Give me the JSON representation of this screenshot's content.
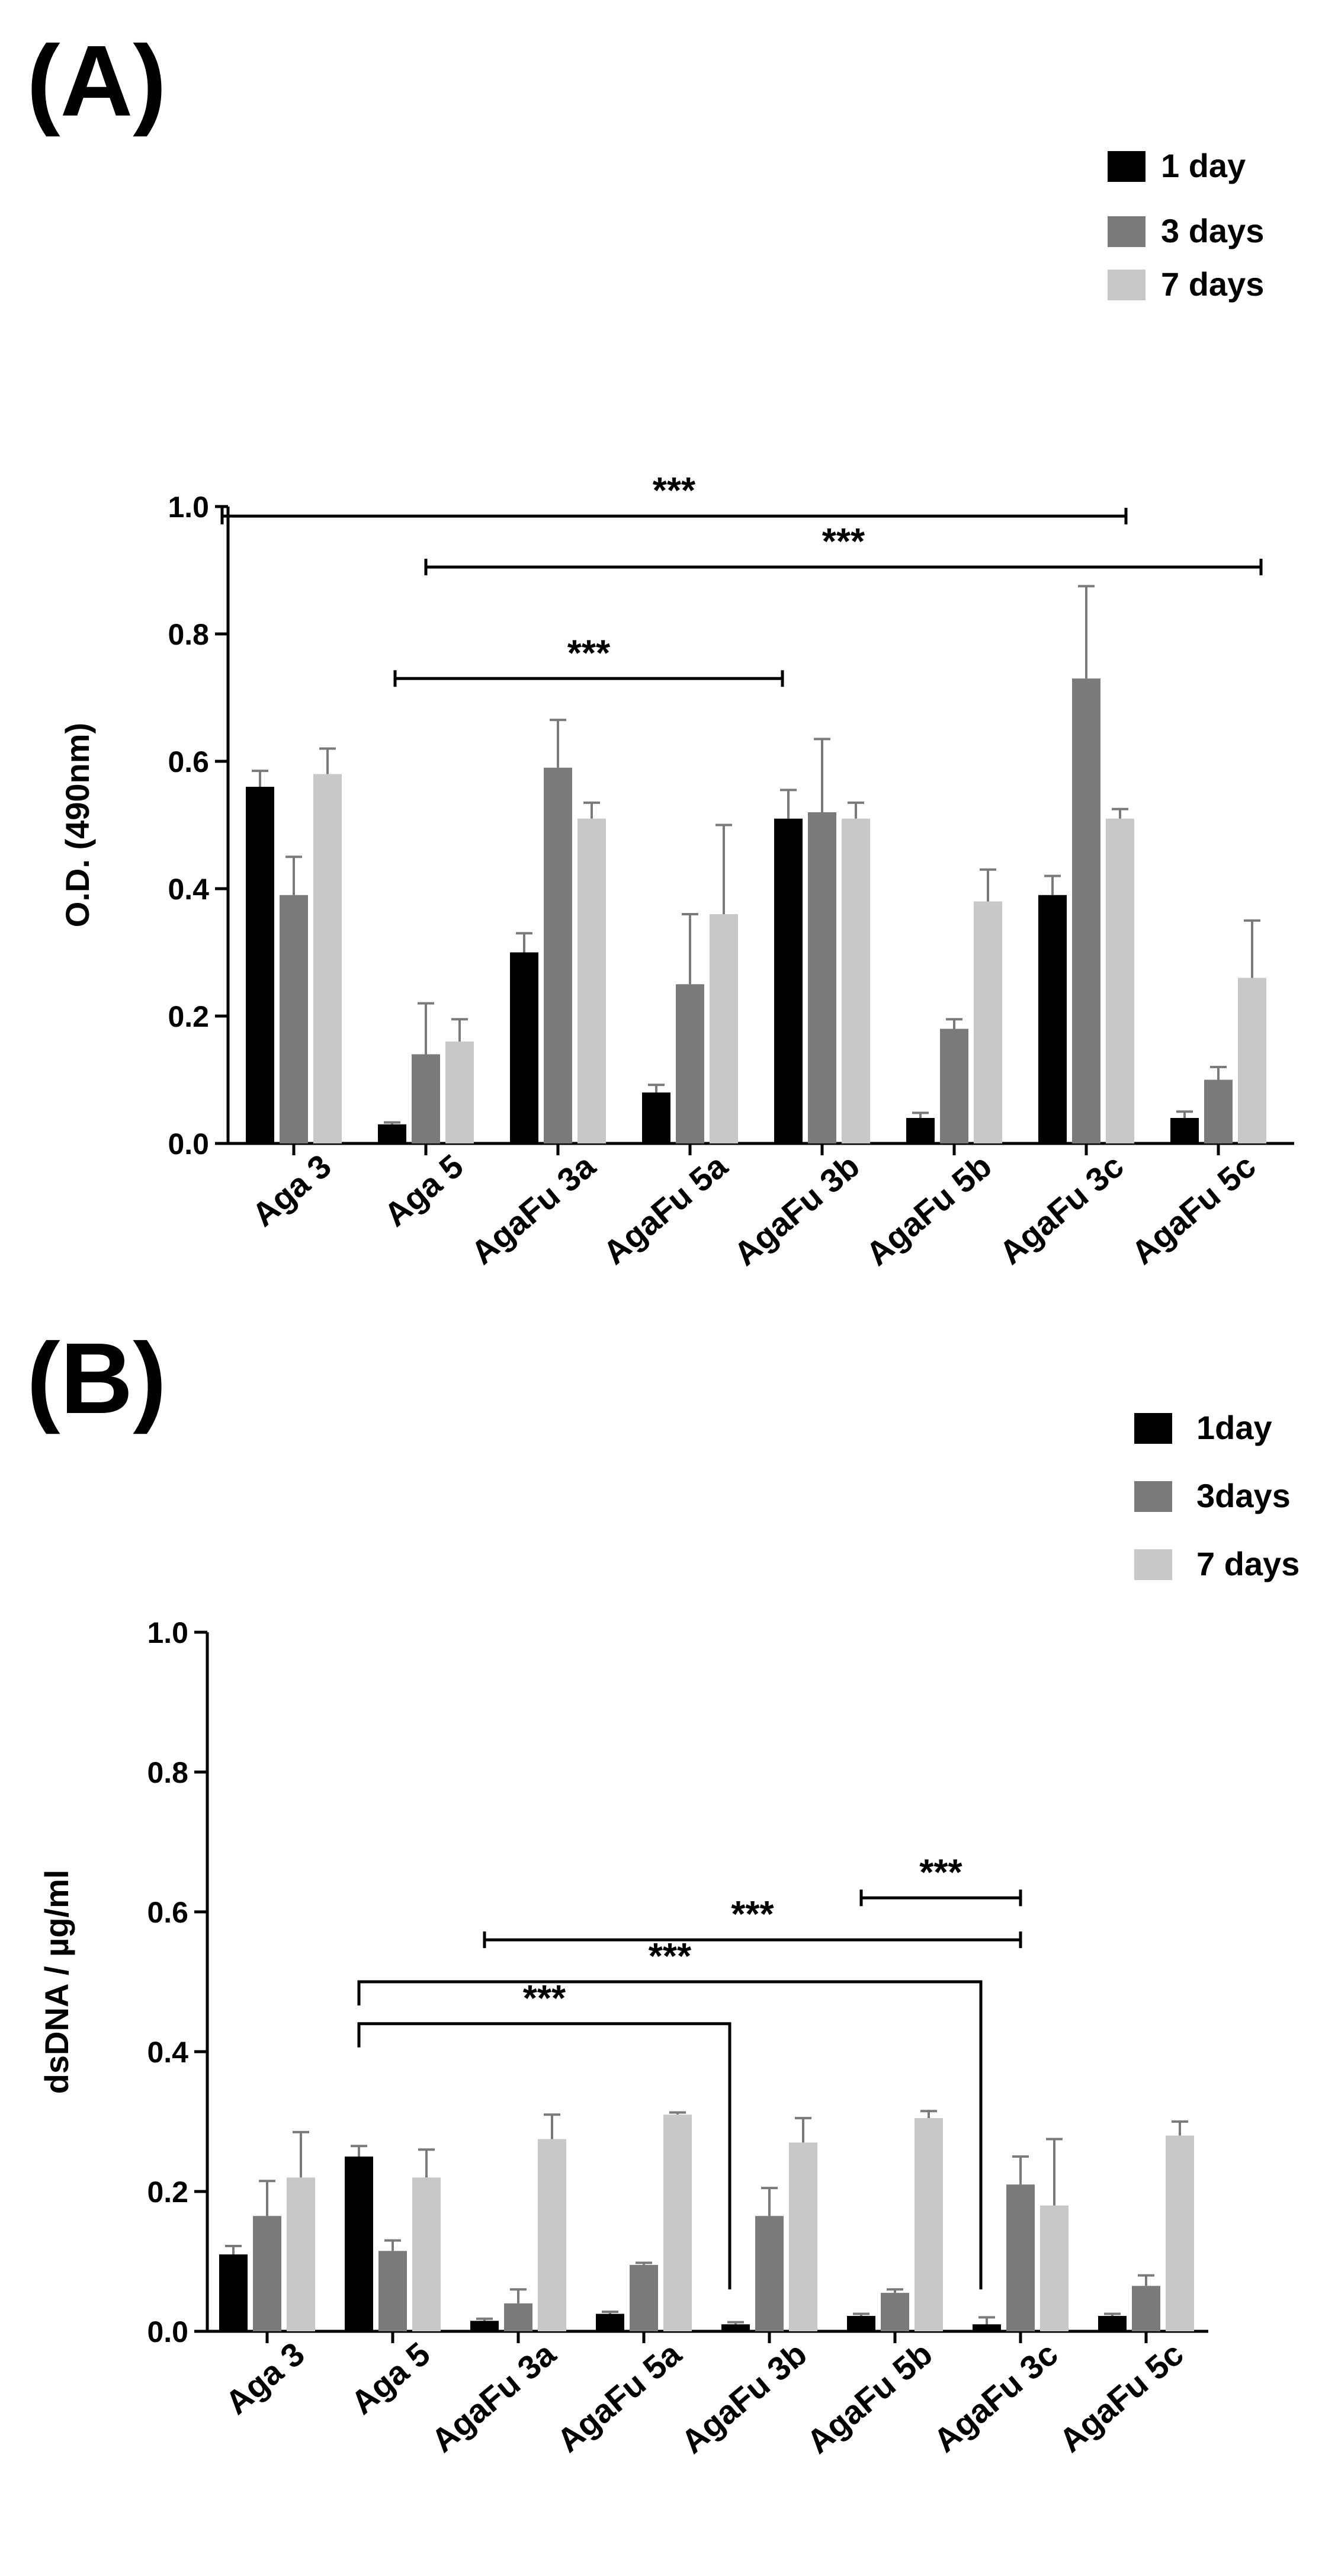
{
  "panels": {
    "a": "(A)",
    "b": "(B)"
  },
  "colors": {
    "day1": "#000000",
    "day3": "#7a7a7a",
    "day7": "#c8c8c8",
    "error": "#7a7a7a"
  },
  "chart_data": [
    {
      "type": "bar",
      "panel": "(A)",
      "title": "",
      "xlabel": "",
      "ylabel": "O.D. (490nm)",
      "ylim": [
        0,
        1.0
      ],
      "yticks": [
        "0.0",
        "0.2",
        "0.4",
        "0.6",
        "0.8",
        "1.0"
      ],
      "grid": false,
      "legend_position": "top-right",
      "categories": [
        "Aga 3",
        "Aga 5",
        "AgaFu 3a",
        "AgaFu 5a",
        "AgaFu 3b",
        "AgaFu 5b",
        "AgaFu 3c",
        "AgaFu 5c"
      ],
      "series": [
        {
          "name": "1 day",
          "values": [
            0.56,
            0.03,
            0.3,
            0.08,
            0.51,
            0.04,
            0.39,
            0.04
          ],
          "errors": [
            0.025,
            0.003,
            0.03,
            0.012,
            0.045,
            0.008,
            0.03,
            0.01
          ]
        },
        {
          "name": "3 days",
          "values": [
            0.39,
            0.14,
            0.59,
            0.25,
            0.52,
            0.18,
            0.73,
            0.1
          ],
          "errors": [
            0.06,
            0.08,
            0.075,
            0.11,
            0.115,
            0.015,
            0.145,
            0.02
          ]
        },
        {
          "name": "7 days",
          "values": [
            0.58,
            0.16,
            0.51,
            0.36,
            0.51,
            0.38,
            0.51,
            0.26
          ],
          "errors": [
            0.04,
            0.035,
            0.025,
            0.14,
            0.025,
            0.05,
            0.015,
            0.09
          ]
        }
      ],
      "significance": [
        {
          "label": "***",
          "from": "Aga 3",
          "to": "AgaFu 5c",
          "y": 0.985
        },
        {
          "label": "***",
          "from": "Aga 5",
          "to": "AgaFu 5c",
          "y": 0.905
        },
        {
          "label": "***",
          "from": "Aga 5",
          "to": "AgaFu 3b",
          "y": 0.73
        }
      ]
    },
    {
      "type": "bar",
      "panel": "(B)",
      "title": "",
      "xlabel": "",
      "ylabel": "dsDNA / µg/ml",
      "ylim": [
        0,
        1.0
      ],
      "yticks": [
        "0.0",
        "0.2",
        "0.4",
        "0.6",
        "0.8",
        "1.0"
      ],
      "grid": false,
      "legend_position": "top-right",
      "categories": [
        "Aga 3",
        "Aga 5",
        "AgaFu 3a",
        "AgaFu 5a",
        "AgaFu 3b",
        "AgaFu 5b",
        "AgaFu 3c",
        "AgaFu 5c"
      ],
      "series": [
        {
          "name": "1day",
          "values": [
            0.11,
            0.25,
            0.015,
            0.025,
            0.01,
            0.022,
            0.01,
            0.022
          ],
          "errors": [
            0.012,
            0.015,
            0.003,
            0.003,
            0.003,
            0.003,
            0.01,
            0.003
          ]
        },
        {
          "name": "3days",
          "values": [
            0.165,
            0.115,
            0.04,
            0.095,
            0.165,
            0.055,
            0.21,
            0.065
          ],
          "errors": [
            0.05,
            0.015,
            0.02,
            0.003,
            0.04,
            0.005,
            0.04,
            0.015
          ]
        },
        {
          "name": "7 days",
          "values": [
            0.22,
            0.22,
            0.275,
            0.31,
            0.27,
            0.305,
            0.18,
            0.28
          ],
          "errors": [
            0.065,
            0.04,
            0.035,
            0.003,
            0.035,
            0.01,
            0.095,
            0.02
          ]
        }
      ],
      "significance": [
        {
          "label": "***",
          "from": "AgaFu 5b",
          "to": "AgaFu 3c",
          "y": 0.62
        },
        {
          "label": "***",
          "from": "AgaFu 3a",
          "to": "AgaFu 3c",
          "y": 0.56
        },
        {
          "label": "***",
          "from": "Aga 5",
          "to": "AgaFu 3c",
          "y": 0.5,
          "drop_from": 0.475,
          "drop_to": 0.06
        },
        {
          "label": "***",
          "from": "Aga 5",
          "to": "AgaFu 3b",
          "y": 0.44,
          "drop_from": 0.415,
          "drop_to": 0.06
        }
      ]
    }
  ]
}
